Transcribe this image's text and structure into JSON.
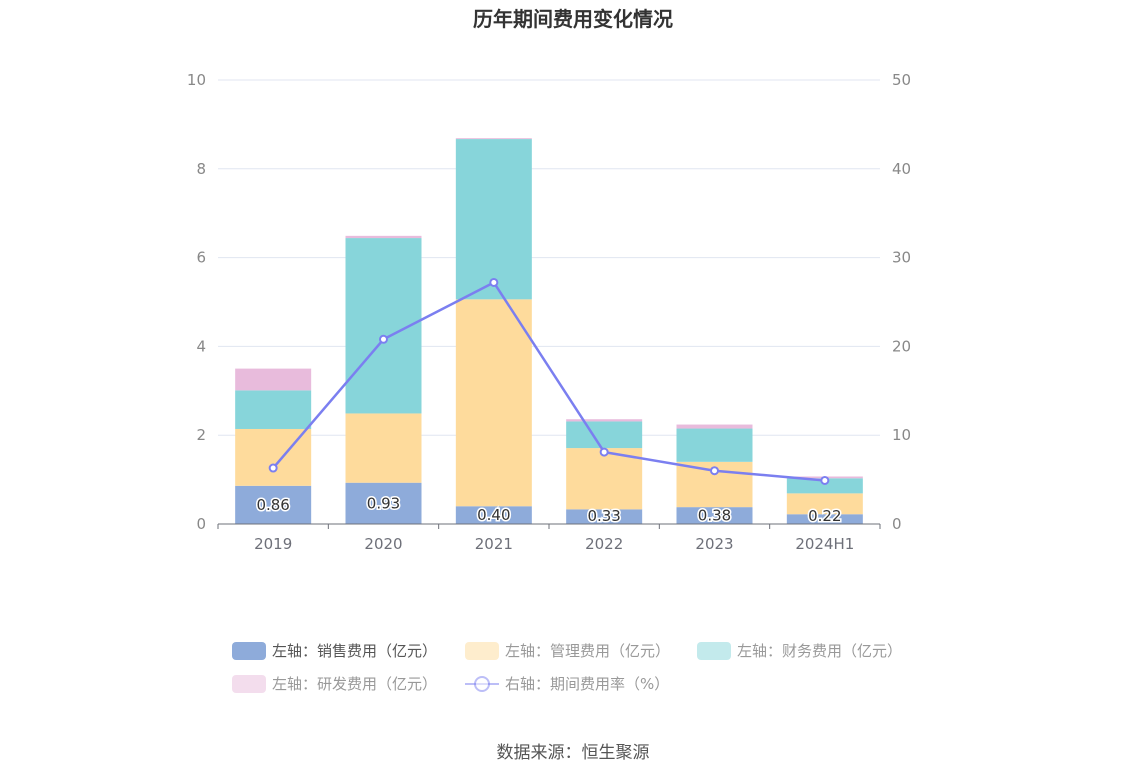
{
  "chart_data": {
    "type": "bar",
    "title": "历年期间费用变化情况",
    "categories": [
      "2019",
      "2020",
      "2021",
      "2022",
      "2023",
      "2024H1"
    ],
    "stacked": true,
    "y_left": {
      "ticks": [
        "0",
        "2",
        "4",
        "6",
        "8",
        "10"
      ],
      "ylim": [
        0,
        10
      ]
    },
    "y_right": {
      "ticks": [
        "0",
        "10",
        "20",
        "30",
        "40",
        "50"
      ],
      "ylim": [
        0,
        50
      ]
    },
    "series": [
      {
        "name": "左轴：销售费用（亿元）",
        "type": "bar",
        "axis": "left",
        "color": "#8eabda",
        "values": [
          0.86,
          0.93,
          0.4,
          0.33,
          0.38,
          0.22
        ],
        "labels": [
          "0.86",
          "0.93",
          "0.40",
          "0.33",
          "0.38",
          "0.22"
        ]
      },
      {
        "name": "左轴：管理费用（亿元）",
        "type": "bar",
        "axis": "left",
        "color": "#fedb9c",
        "values": [
          1.28,
          1.56,
          4.66,
          1.38,
          1.02,
          0.47
        ]
      },
      {
        "name": "左轴：财务费用（亿元）",
        "type": "bar",
        "axis": "left",
        "color": "#87d5da",
        "values": [
          0.87,
          3.95,
          3.61,
          0.6,
          0.75,
          0.34
        ]
      },
      {
        "name": "左轴：研发费用（亿元）",
        "type": "bar",
        "axis": "left",
        "color": "#e8bbdc",
        "values": [
          0.49,
          0.05,
          0.02,
          0.05,
          0.09,
          0.04
        ]
      },
      {
        "name": "右轴：期间费用率（%）",
        "type": "line",
        "axis": "right",
        "color": "#7b7ff0",
        "values": [
          6.3,
          20.8,
          27.2,
          8.1,
          6.0,
          4.9
        ]
      }
    ],
    "legend_position": "bottom",
    "grid": true
  },
  "source_text": "数据来源：恒生聚源"
}
